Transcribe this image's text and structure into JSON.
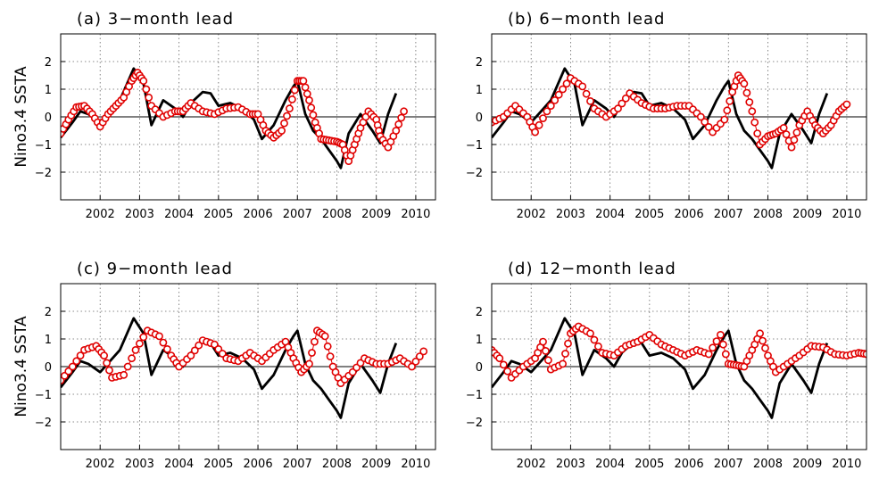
{
  "colors": {
    "observed": "#000000",
    "forecast": "#e00000",
    "grid": "#666666"
  },
  "chart_data": [
    {
      "type": "line",
      "title": "(a) 3−month lead",
      "ylabel": "Nino3.4 SSTA",
      "xlim": [
        2001.0,
        2010.5
      ],
      "ylim": [
        -3,
        3
      ],
      "grid": true,
      "xticks": [
        2002,
        2003,
        2004,
        2005,
        2006,
        2007,
        2008,
        2009,
        2010
      ],
      "xtick_labels": [
        "2002",
        "2003",
        "2004",
        "2005",
        "2006",
        "2007",
        "2008",
        "2009",
        "2010"
      ],
      "yticks": [
        -2,
        -1,
        0,
        1,
        2
      ],
      "ytick_labels": [
        "−2",
        "−1",
        "0",
        "1",
        "2"
      ],
      "series": [
        {
          "style": "solid-line",
          "x": [
            2001.0,
            2001.3,
            2001.5,
            2001.7,
            2002.0,
            2002.25,
            2002.5,
            2002.85,
            2003.1,
            2003.3,
            2003.6,
            2003.9,
            2004.1,
            2004.3,
            2004.6,
            2004.8,
            2005.0,
            2005.3,
            2005.6,
            2005.9,
            2006.1,
            2006.4,
            2006.7,
            2006.9,
            2007.0,
            2007.2,
            2007.4,
            2007.6,
            2007.8,
            2008.0,
            2008.1,
            2008.3,
            2008.6,
            2008.9,
            2009.1,
            2009.3,
            2009.5
          ],
          "y": [
            -0.75,
            -0.2,
            0.2,
            0.1,
            -0.2,
            0.2,
            0.6,
            1.75,
            1.2,
            -0.3,
            0.6,
            0.3,
            0.0,
            0.5,
            0.9,
            0.85,
            0.4,
            0.5,
            0.3,
            -0.1,
            -0.8,
            -0.3,
            0.6,
            1.1,
            1.3,
            0.1,
            -0.5,
            -0.8,
            -1.2,
            -1.6,
            -1.85,
            -0.6,
            0.1,
            -0.5,
            -0.95,
            0.1,
            0.85
          ]
        },
        {
          "style": "red-circles",
          "x": [
            2001.0,
            2001.2,
            2001.4,
            2001.6,
            2001.8,
            2002.0,
            2002.2,
            2002.4,
            2002.6,
            2002.8,
            2002.95,
            2003.1,
            2003.3,
            2003.6,
            2003.9,
            2004.1,
            2004.3,
            2004.6,
            2004.9,
            2005.2,
            2005.5,
            2005.8,
            2006.0,
            2006.2,
            2006.4,
            2006.6,
            2006.8,
            2007.0,
            2007.15,
            2007.3,
            2007.45,
            2007.6,
            2007.8,
            2008.0,
            2008.15,
            2008.3,
            2008.45,
            2008.6,
            2008.8,
            2009.0,
            2009.1,
            2009.3,
            2009.5,
            2009.7
          ],
          "y": [
            -0.6,
            -0.1,
            0.35,
            0.4,
            0.1,
            -0.35,
            0.1,
            0.4,
            0.7,
            1.3,
            1.6,
            1.3,
            0.4,
            0.0,
            0.2,
            0.2,
            0.5,
            0.2,
            0.1,
            0.3,
            0.35,
            0.1,
            0.1,
            -0.5,
            -0.75,
            -0.5,
            0.3,
            1.3,
            1.3,
            0.6,
            -0.2,
            -0.8,
            -0.85,
            -0.9,
            -1.0,
            -1.6,
            -1.0,
            -0.4,
            0.2,
            -0.1,
            -0.7,
            -1.1,
            -0.5,
            0.2
          ]
        }
      ]
    },
    {
      "type": "line",
      "title": "(b) 6−month lead",
      "ylabel": "",
      "xlim": [
        2001.0,
        2010.5
      ],
      "ylim": [
        -3,
        3
      ],
      "grid": true,
      "xticks": [
        2002,
        2003,
        2004,
        2005,
        2006,
        2007,
        2008,
        2009,
        2010
      ],
      "xtick_labels": [
        "2002",
        "2003",
        "2004",
        "2005",
        "2006",
        "2007",
        "2008",
        "2009",
        "2010"
      ],
      "yticks": [
        -2,
        -1,
        0,
        1,
        2
      ],
      "ytick_labels": [
        "−2",
        "−1",
        "0",
        "1",
        "2"
      ],
      "series": [
        {
          "style": "solid-line",
          "x": [
            2001.0,
            2001.3,
            2001.5,
            2001.7,
            2002.0,
            2002.25,
            2002.5,
            2002.85,
            2003.1,
            2003.3,
            2003.6,
            2003.9,
            2004.1,
            2004.3,
            2004.6,
            2004.8,
            2005.0,
            2005.3,
            2005.6,
            2005.9,
            2006.1,
            2006.4,
            2006.7,
            2006.9,
            2007.0,
            2007.2,
            2007.4,
            2007.6,
            2007.8,
            2008.0,
            2008.1,
            2008.3,
            2008.6,
            2008.9,
            2009.1,
            2009.3,
            2009.5
          ],
          "y": [
            -0.75,
            -0.2,
            0.2,
            0.1,
            -0.2,
            0.2,
            0.6,
            1.75,
            1.2,
            -0.3,
            0.6,
            0.3,
            0.0,
            0.5,
            0.9,
            0.85,
            0.4,
            0.5,
            0.3,
            -0.1,
            -0.8,
            -0.3,
            0.6,
            1.1,
            1.3,
            0.1,
            -0.5,
            -0.8,
            -1.2,
            -1.6,
            -1.85,
            -0.6,
            0.1,
            -0.5,
            -0.95,
            0.1,
            0.85
          ]
        },
        {
          "style": "red-circles",
          "x": [
            2001.0,
            2001.3,
            2001.6,
            2001.9,
            2002.1,
            2002.4,
            2002.7,
            2003.0,
            2003.3,
            2003.6,
            2003.9,
            2004.2,
            2004.5,
            2004.8,
            2005.1,
            2005.4,
            2005.7,
            2006.0,
            2006.3,
            2006.6,
            2006.9,
            2007.1,
            2007.25,
            2007.4,
            2007.6,
            2007.8,
            2008.0,
            2008.2,
            2008.4,
            2008.6,
            2008.8,
            2009.0,
            2009.2,
            2009.4,
            2009.6,
            2009.8,
            2010.0
          ],
          "y": [
            -0.2,
            0.0,
            0.4,
            0.0,
            -0.55,
            0.2,
            0.8,
            1.4,
            1.1,
            0.3,
            0.0,
            0.3,
            0.85,
            0.5,
            0.3,
            0.3,
            0.4,
            0.4,
            0.0,
            -0.55,
            -0.1,
            0.9,
            1.5,
            1.2,
            0.2,
            -1.0,
            -0.7,
            -0.6,
            -0.4,
            -1.1,
            -0.3,
            0.2,
            -0.3,
            -0.6,
            -0.3,
            0.2,
            0.45
          ]
        }
      ]
    },
    {
      "type": "line",
      "title": "(c) 9−month lead",
      "ylabel": "Nino3.4 SSTA",
      "xlim": [
        2001.0,
        2010.5
      ],
      "ylim": [
        -3,
        3
      ],
      "grid": true,
      "xticks": [
        2002,
        2003,
        2004,
        2005,
        2006,
        2007,
        2008,
        2009,
        2010
      ],
      "xtick_labels": [
        "2002",
        "2003",
        "2004",
        "2005",
        "2006",
        "2007",
        "2008",
        "2009",
        "2010"
      ],
      "yticks": [
        -2,
        -1,
        0,
        1,
        2
      ],
      "ytick_labels": [
        "−2",
        "−1",
        "0",
        "1",
        "2"
      ],
      "series": [
        {
          "style": "solid-line",
          "x": [
            2001.0,
            2001.3,
            2001.5,
            2001.7,
            2002.0,
            2002.25,
            2002.5,
            2002.85,
            2003.1,
            2003.3,
            2003.6,
            2003.9,
            2004.1,
            2004.3,
            2004.6,
            2004.8,
            2005.0,
            2005.3,
            2005.6,
            2005.9,
            2006.1,
            2006.4,
            2006.7,
            2006.9,
            2007.0,
            2007.2,
            2007.4,
            2007.6,
            2007.8,
            2008.0,
            2008.1,
            2008.3,
            2008.6,
            2008.9,
            2009.1,
            2009.3,
            2009.5
          ],
          "y": [
            -0.75,
            -0.2,
            0.2,
            0.1,
            -0.2,
            0.2,
            0.6,
            1.75,
            1.2,
            -0.3,
            0.6,
            0.3,
            0.0,
            0.5,
            0.9,
            0.85,
            0.4,
            0.5,
            0.3,
            -0.1,
            -0.8,
            -0.3,
            0.6,
            1.1,
            1.3,
            0.1,
            -0.5,
            -0.8,
            -1.2,
            -1.6,
            -1.85,
            -0.6,
            0.1,
            -0.5,
            -0.95,
            0.1,
            0.85
          ]
        },
        {
          "style": "red-circles",
          "x": [
            2001.0,
            2001.3,
            2001.6,
            2001.9,
            2002.1,
            2002.3,
            2002.6,
            2002.9,
            2003.2,
            2003.5,
            2003.8,
            2004.0,
            2004.3,
            2004.6,
            2004.9,
            2005.2,
            2005.5,
            2005.8,
            2006.1,
            2006.4,
            2006.7,
            2006.9,
            2007.1,
            2007.3,
            2007.5,
            2007.7,
            2007.9,
            2008.1,
            2008.4,
            2008.7,
            2009.0,
            2009.3,
            2009.6,
            2009.9,
            2010.2
          ],
          "y": [
            -0.5,
            0.0,
            0.6,
            0.75,
            0.4,
            -0.4,
            -0.3,
            0.6,
            1.3,
            1.1,
            0.4,
            0.0,
            0.4,
            0.95,
            0.8,
            0.3,
            0.2,
            0.5,
            0.2,
            0.6,
            0.9,
            0.3,
            -0.2,
            0.1,
            1.3,
            1.1,
            0.0,
            -0.6,
            -0.2,
            0.3,
            0.1,
            0.1,
            0.3,
            0.0,
            0.55
          ]
        }
      ]
    },
    {
      "type": "line",
      "title": "(d) 12−month lead",
      "ylabel": "",
      "xlim": [
        2001.0,
        2010.5
      ],
      "ylim": [
        -3,
        3
      ],
      "grid": true,
      "xticks": [
        2002,
        2003,
        2004,
        2005,
        2006,
        2007,
        2008,
        2009,
        2010
      ],
      "xtick_labels": [
        "2002",
        "2003",
        "2004",
        "2005",
        "2006",
        "2007",
        "2008",
        "2009",
        "2010"
      ],
      "yticks": [
        -2,
        -1,
        0,
        1,
        2
      ],
      "ytick_labels": [
        "−2",
        "−1",
        "0",
        "1",
        "2"
      ],
      "series": [
        {
          "style": "solid-line",
          "x": [
            2001.0,
            2001.3,
            2001.5,
            2001.7,
            2002.0,
            2002.25,
            2002.5,
            2002.85,
            2003.1,
            2003.3,
            2003.6,
            2003.9,
            2004.1,
            2004.3,
            2004.6,
            2004.8,
            2005.0,
            2005.3,
            2005.6,
            2005.9,
            2006.1,
            2006.4,
            2006.7,
            2006.9,
            2007.0,
            2007.2,
            2007.4,
            2007.6,
            2007.8,
            2008.0,
            2008.1,
            2008.3,
            2008.6,
            2008.9,
            2009.1,
            2009.3,
            2009.5
          ],
          "y": [
            -0.75,
            -0.2,
            0.2,
            0.1,
            -0.2,
            0.2,
            0.6,
            1.75,
            1.2,
            -0.3,
            0.6,
            0.3,
            0.0,
            0.5,
            0.9,
            0.85,
            0.4,
            0.5,
            0.3,
            -0.1,
            -0.8,
            -0.3,
            0.6,
            1.1,
            1.3,
            0.1,
            -0.5,
            -0.8,
            -1.2,
            -1.6,
            -1.85,
            -0.6,
            0.1,
            -0.5,
            -0.95,
            0.1,
            0.85
          ]
        },
        {
          "style": "red-circles",
          "x": [
            2001.0,
            2001.2,
            2001.5,
            2001.8,
            2002.1,
            2002.3,
            2002.5,
            2002.8,
            2003.0,
            2003.2,
            2003.5,
            2003.8,
            2004.1,
            2004.4,
            2004.7,
            2005.0,
            2005.3,
            2005.6,
            2005.9,
            2006.2,
            2006.5,
            2006.8,
            2007.0,
            2007.2,
            2007.4,
            2007.6,
            2007.8,
            2008.0,
            2008.2,
            2008.5,
            2008.8,
            2009.1,
            2009.4,
            2009.7,
            2010.0,
            2010.3,
            2010.5
          ],
          "y": [
            0.6,
            0.3,
            -0.4,
            0.0,
            0.3,
            0.9,
            -0.1,
            0.1,
            1.2,
            1.45,
            1.2,
            0.5,
            0.4,
            0.75,
            0.9,
            1.15,
            0.8,
            0.6,
            0.4,
            0.6,
            0.45,
            1.15,
            0.1,
            0.05,
            0.0,
            0.6,
            1.2,
            0.4,
            -0.2,
            0.1,
            0.4,
            0.75,
            0.7,
            0.45,
            0.4,
            0.5,
            0.45
          ]
        }
      ]
    }
  ]
}
